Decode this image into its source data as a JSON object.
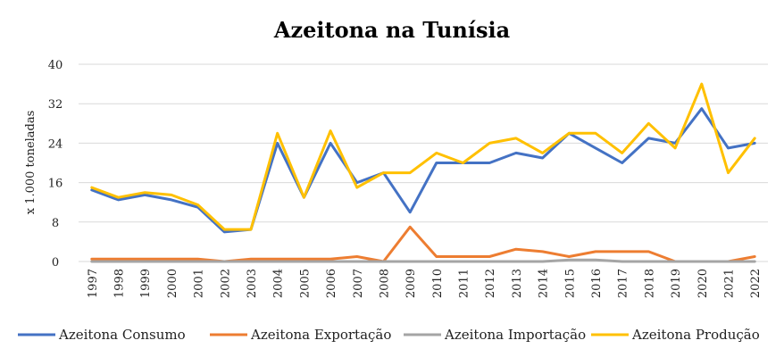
{
  "chart_data": {
    "type": "line",
    "title": "Azeitona na Tunísia",
    "ylabel": "x 1.000 toneladas",
    "xlabel": "",
    "ylim": [
      0,
      40
    ],
    "yticks": [
      0,
      8,
      16,
      24,
      32,
      40
    ],
    "grid": true,
    "legend": "bottom",
    "categories": [
      "1997",
      "1998",
      "1999",
      "2000",
      "2001",
      "2002",
      "2003",
      "2004",
      "2005",
      "2006",
      "2007",
      "2008",
      "2009",
      "2010",
      "2011",
      "2012",
      "2013",
      "2014",
      "2015",
      "2016",
      "2017",
      "2018",
      "2019",
      "2020",
      "2021",
      "2022"
    ],
    "series": [
      {
        "name": "Azeitona Consumo",
        "color": "#4472C4",
        "values": [
          14.5,
          12.5,
          13.5,
          12.5,
          11,
          6,
          6.5,
          24,
          13,
          24,
          16,
          18,
          10,
          20,
          20,
          20,
          22,
          21,
          26,
          23,
          20,
          25,
          24,
          31,
          23,
          24
        ]
      },
      {
        "name": "Azeitona Exportação",
        "color": "#ED7D31",
        "values": [
          0.5,
          0.5,
          0.5,
          0.5,
          0.5,
          0,
          0.5,
          0.5,
          0.5,
          0.5,
          1,
          0,
          7,
          1,
          1,
          1,
          2.5,
          2,
          1,
          2,
          2,
          2,
          0,
          0,
          0,
          1
        ]
      },
      {
        "name": "Azeitona Importação",
        "color": "#A5A5A5",
        "values": [
          0,
          0,
          0,
          0,
          0,
          0,
          0,
          0,
          0,
          0,
          0,
          0,
          0,
          0,
          0,
          0,
          0,
          0,
          0.3,
          0.3,
          0,
          0,
          0,
          0,
          0,
          0
        ]
      },
      {
        "name": "Azeitona Produção",
        "color": "#FFC000",
        "values": [
          15,
          13,
          14,
          13.5,
          11.5,
          6.5,
          6.5,
          26,
          13,
          26.5,
          15,
          18,
          18,
          22,
          20,
          24,
          25,
          22,
          26,
          26,
          22,
          28,
          23,
          36,
          18,
          25
        ]
      }
    ]
  }
}
